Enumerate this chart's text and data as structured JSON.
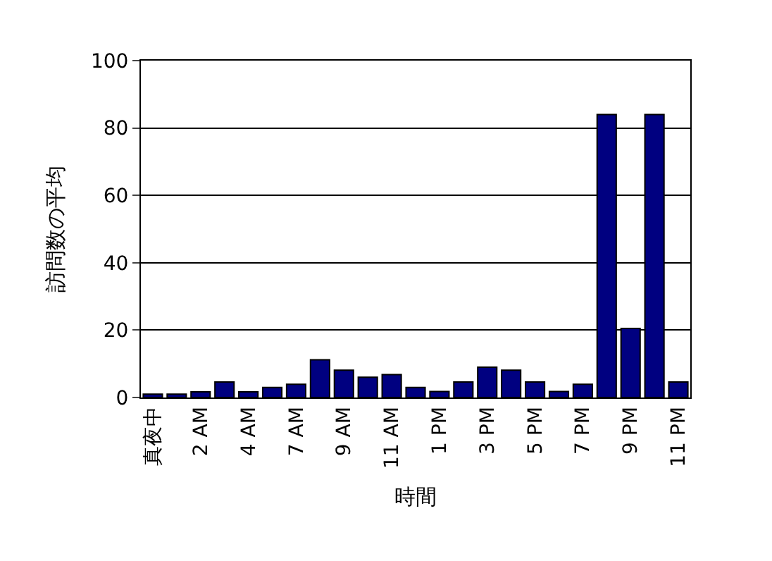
{
  "chart_data": {
    "type": "bar",
    "xlabel": "時間",
    "ylabel": "訪問数の平均",
    "categories": [
      "真夜中",
      null,
      "2 AM",
      null,
      "4 AM",
      null,
      "7 AM",
      null,
      "9 AM",
      null,
      "11 AM",
      null,
      "1 PM",
      null,
      "3 PM",
      null,
      "5 PM",
      null,
      "7 PM",
      null,
      "9 PM",
      null,
      "11 PM"
    ],
    "values": [
      1,
      1,
      1.7,
      4.6,
      1.7,
      3,
      3.9,
      11.2,
      8.1,
      6,
      6.8,
      3,
      1.8,
      4.6,
      9,
      8.1,
      4.6,
      1.8,
      3.9,
      84,
      20.5,
      84,
      4.6
    ],
    "color": "#000080",
    "ylim": [
      0,
      100
    ],
    "yticks": [
      0,
      20,
      40,
      60,
      80,
      100
    ],
    "grid": "y"
  }
}
